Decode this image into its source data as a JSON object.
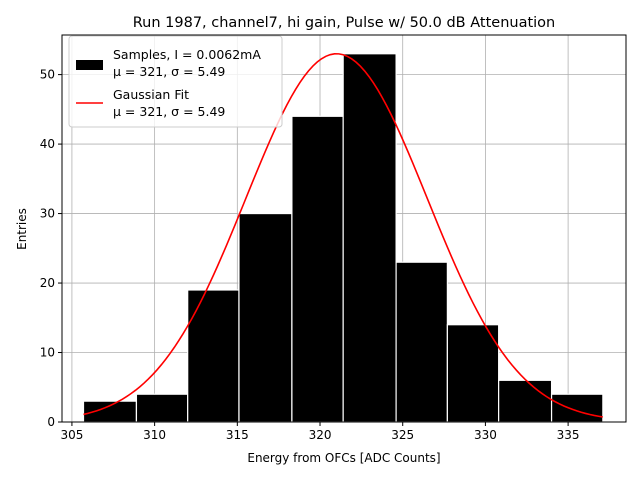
{
  "chart_data": {
    "type": "bar",
    "title": "Run 1987, channel7, hi gain, Pulse w/ 50.0 dB Attenuation",
    "xlabel": "Energy from OFCs [ADC Counts]",
    "ylabel": "Entries",
    "xlim": [
      304.4,
      338.5
    ],
    "ylim": [
      0,
      55.7
    ],
    "xticks": [
      305,
      310,
      315,
      320,
      325,
      330,
      335
    ],
    "yticks": [
      0,
      10,
      20,
      30,
      40,
      50
    ],
    "grid": true,
    "legend_position": "top-left",
    "bin_edges": [
      305.7,
      308.9,
      312.0,
      315.1,
      318.3,
      321.4,
      324.6,
      327.7,
      330.8,
      334.0,
      337.1
    ],
    "values": [
      3,
      4,
      19,
      30,
      44,
      53,
      23,
      14,
      6,
      4
    ],
    "fit": {
      "type": "gaussian",
      "amplitude": 53,
      "mu": 321,
      "sigma": 5.49,
      "x_range": [
        305.7,
        337.1
      ]
    },
    "colors": {
      "bars": "#000000",
      "bar_edge": "#ffffff",
      "fit_line": "#ff0000",
      "grid": "#b0b0b0"
    },
    "legend": [
      {
        "label": "Samples, I = 0.0062mA",
        "sublabel": "μ = 321, σ = 5.49",
        "kind": "patch"
      },
      {
        "label": "Gaussian Fit",
        "sublabel": "μ = 321, σ = 5.49",
        "kind": "line"
      }
    ]
  }
}
